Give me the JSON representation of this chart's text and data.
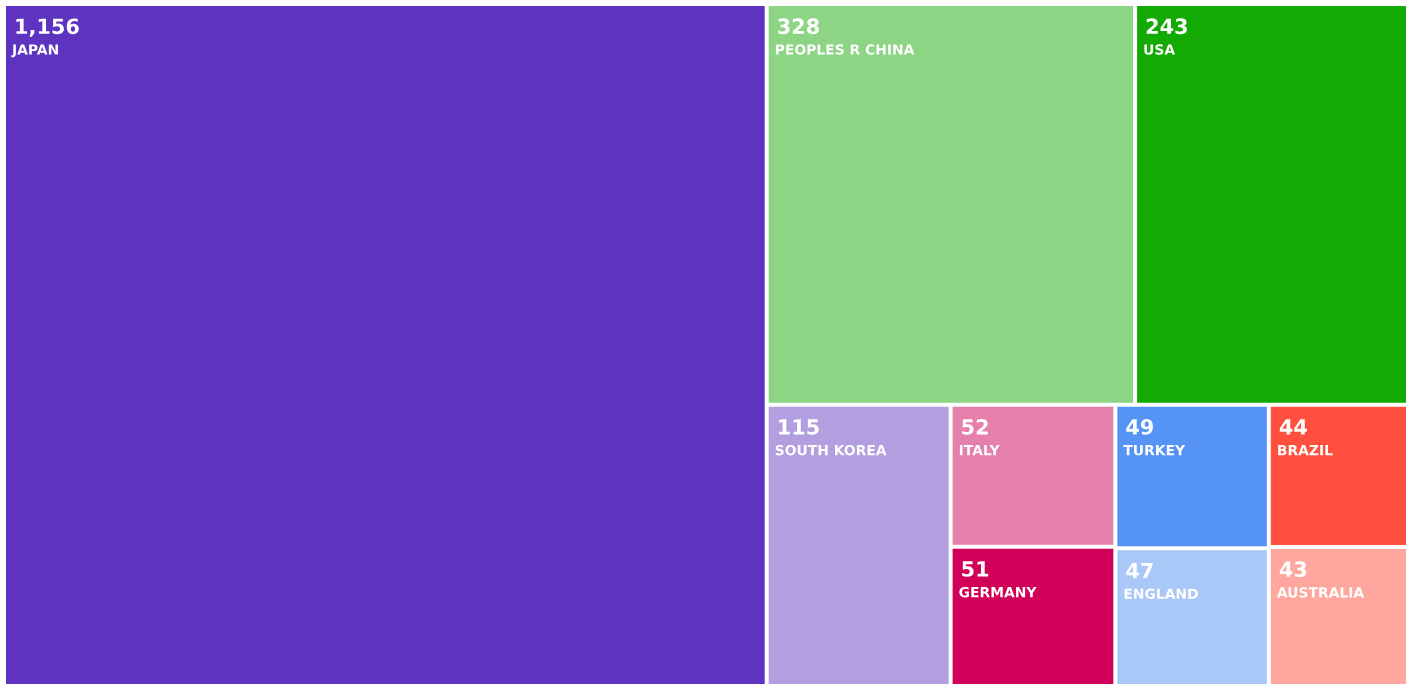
{
  "chart_data": {
    "type": "other",
    "categories": [
      "JAPAN",
      "PEOPLES R CHINA",
      "USA",
      "SOUTH KOREA",
      "ITALY",
      "GERMANY",
      "TURKEY",
      "ENGLAND",
      "BRAZIL",
      "AUSTRALIA"
    ],
    "values": [
      1156,
      328,
      243,
      115,
      52,
      51,
      49,
      47,
      44,
      43
    ],
    "value_labels": [
      "1,156",
      "328",
      "243",
      "115",
      "52",
      "51",
      "49",
      "47",
      "44",
      "43"
    ],
    "colors": [
      "#5d33c0",
      "#8dd584",
      "#14aa04",
      "#b39fe0",
      "#e57fab",
      "#d10058",
      "#5593f5",
      "#a9c8f8",
      "#ff4f3f",
      "#ffa79e"
    ]
  }
}
